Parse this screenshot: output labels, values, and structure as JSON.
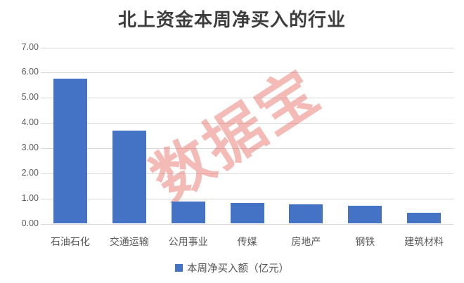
{
  "title": "北上资金本周净买入的行业",
  "watermark": "数据宝",
  "legend": {
    "label": "本周净买入额（亿元）"
  },
  "colors": {
    "bar": "#4472C4",
    "gridline": "#D9D9D9",
    "axis_text": "#595959",
    "title_text": "#3D3D3D",
    "watermark": "rgba(228,90,78,0.42)",
    "legend_swatch": "#4472C4"
  },
  "chart_data": {
    "type": "bar",
    "title": "北上资金本周净买入的行业",
    "categories": [
      "石油石化",
      "交通运输",
      "公用事业",
      "传媒",
      "房地产",
      "钢铁",
      "建筑材料"
    ],
    "values": [
      5.76,
      3.7,
      0.89,
      0.83,
      0.76,
      0.72,
      0.44
    ],
    "series_name": "本周净买入额（亿元）",
    "xlabel": "",
    "ylabel": "",
    "ylim": [
      0,
      7
    ],
    "ytick_step": 1,
    "ytick_labels": [
      "0.00",
      "1.00",
      "2.00",
      "3.00",
      "4.00",
      "5.00",
      "6.00",
      "7.00"
    ],
    "grid": true,
    "legend_position": "bottom",
    "watermark_text": "数据宝"
  }
}
